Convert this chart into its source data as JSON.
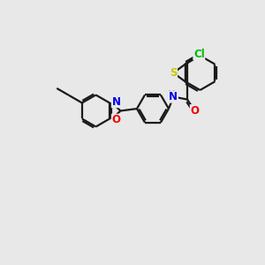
{
  "bg_color": "#e8e8e8",
  "bond_color": "#1a1a1a",
  "bond_lw": 1.6,
  "atom_colors": {
    "S": "#c8c800",
    "N": "#0000ee",
    "O": "#ee0000",
    "Cl": "#00bb00",
    "NH": "#4488aa"
  },
  "font_size": 8.0,
  "xlim": [
    0,
    10
  ],
  "ylim": [
    0,
    10
  ]
}
